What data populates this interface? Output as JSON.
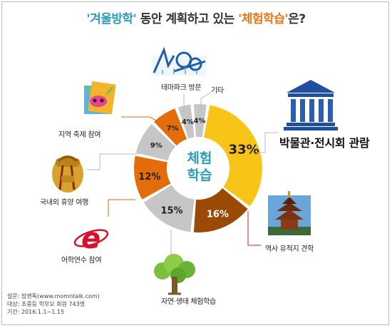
{
  "title": {
    "part1": "'겨울방학'",
    "part2": " 동안 계획하고 있는 ",
    "part3": "'체험학습'",
    "part4": "은?"
  },
  "center_label": {
    "line1": "체험",
    "line2": "학습"
  },
  "icons": [
    "roller-coaster-icon",
    "carnival-mask-icon",
    "backpack-icon",
    "e-letter-icon",
    "tree-icon",
    "museum-icon",
    "pagoda-icon"
  ],
  "colors": {
    "yellow": "#f7c417",
    "brown": "#9a4a06",
    "gray": "#c6c6c6",
    "orange": "#e46c0a",
    "title_teal": "#2a9fb8",
    "title_orange": "#e8791a"
  },
  "chart_data": {
    "type": "pie",
    "style": "donut",
    "title": "'겨울방학' 동안 계획하고 있는 '체험학습'은?",
    "slices": [
      {
        "label": "박물관·전시회 관람",
        "value": 33,
        "value_label": "33%",
        "color": "#f7c417"
      },
      {
        "label": "역사 유적지 견학",
        "value": 16,
        "value_label": "16%",
        "color": "#9a4a06"
      },
      {
        "label": "자연·생태 체험학습",
        "value": 15,
        "value_label": "15%",
        "color": "#c6c6c6"
      },
      {
        "label": "어학연수 참여",
        "value": 12,
        "value_label": "12%",
        "color": "#e46c0a"
      },
      {
        "label": "국내외 휴양 여행",
        "value": 9,
        "value_label": "9%",
        "color": "#c6c6c6"
      },
      {
        "label": "지역 축제 참여",
        "value": 7,
        "value_label": "7%",
        "color": "#e46c0a"
      },
      {
        "label": "테마파크 방문",
        "value": 4,
        "value_label": "4%",
        "color": "#c6c6c6"
      },
      {
        "label": "기타",
        "value": 4,
        "value_label": "4%",
        "color": "#c6c6c6"
      }
    ]
  },
  "survey": {
    "line1": "설문: 맘앤톡(www.momntalk.com)",
    "line2": "대상: 초중등 학부모 회원 743명",
    "line3": "기간: 2016.1.1~1.15"
  }
}
